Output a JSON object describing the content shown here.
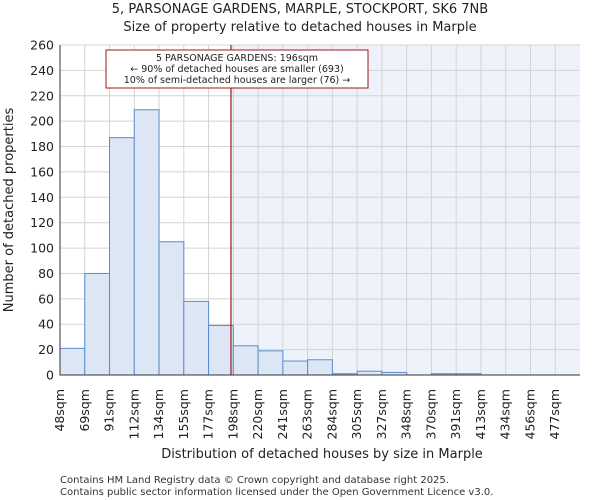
{
  "chart_data": {
    "type": "bar",
    "title_line1": "5, PARSONAGE GARDENS, MARPLE, STOCKPORT, SK6 7NB",
    "title_line2": "Size of property relative to detached houses in Marple",
    "xlabel": "Distribution of detached houses by size in Marple",
    "ylabel": "Number of detached properties",
    "ylim": [
      0,
      260
    ],
    "yticks": [
      0,
      20,
      40,
      60,
      80,
      100,
      120,
      140,
      160,
      180,
      200,
      220,
      240,
      260
    ],
    "grid": true,
    "bin_edges": [
      48,
      69,
      91,
      112,
      134,
      155,
      177,
      198,
      220,
      241,
      263,
      284,
      305,
      327,
      348,
      370,
      391,
      413,
      434,
      456,
      477
    ],
    "bin_labels": [
      "48sqm",
      "69sqm",
      "91sqm",
      "112sqm",
      "134sqm",
      "155sqm",
      "177sqm",
      "198sqm",
      "220sqm",
      "241sqm",
      "263sqm",
      "284sqm",
      "305sqm",
      "327sqm",
      "348sqm",
      "370sqm",
      "391sqm",
      "413sqm",
      "434sqm",
      "456sqm",
      "477sqm"
    ],
    "values": [
      21,
      80,
      187,
      209,
      105,
      58,
      39,
      23,
      19,
      11,
      12,
      1,
      3,
      2,
      0,
      1,
      1,
      0,
      0,
      0,
      0
    ],
    "subject_value": 196,
    "annotation": {
      "line1": "5 PARSONAGE GARDENS: 196sqm",
      "line2": "← 90% of detached houses are smaller (693)",
      "line3": "10% of semi-detached houses are larger (76) →"
    },
    "colors": {
      "bar_fill": "#dce6f5",
      "bar_stroke": "#5b8ccf",
      "highlight_bg": "#eef2fb",
      "marker": "#a01818",
      "grid": "#d4d4d4"
    }
  },
  "footer": {
    "line1": "Contains HM Land Registry data © Crown copyright and database right 2025.",
    "line2": "Contains public sector information licensed under the Open Government Licence v3.0."
  }
}
